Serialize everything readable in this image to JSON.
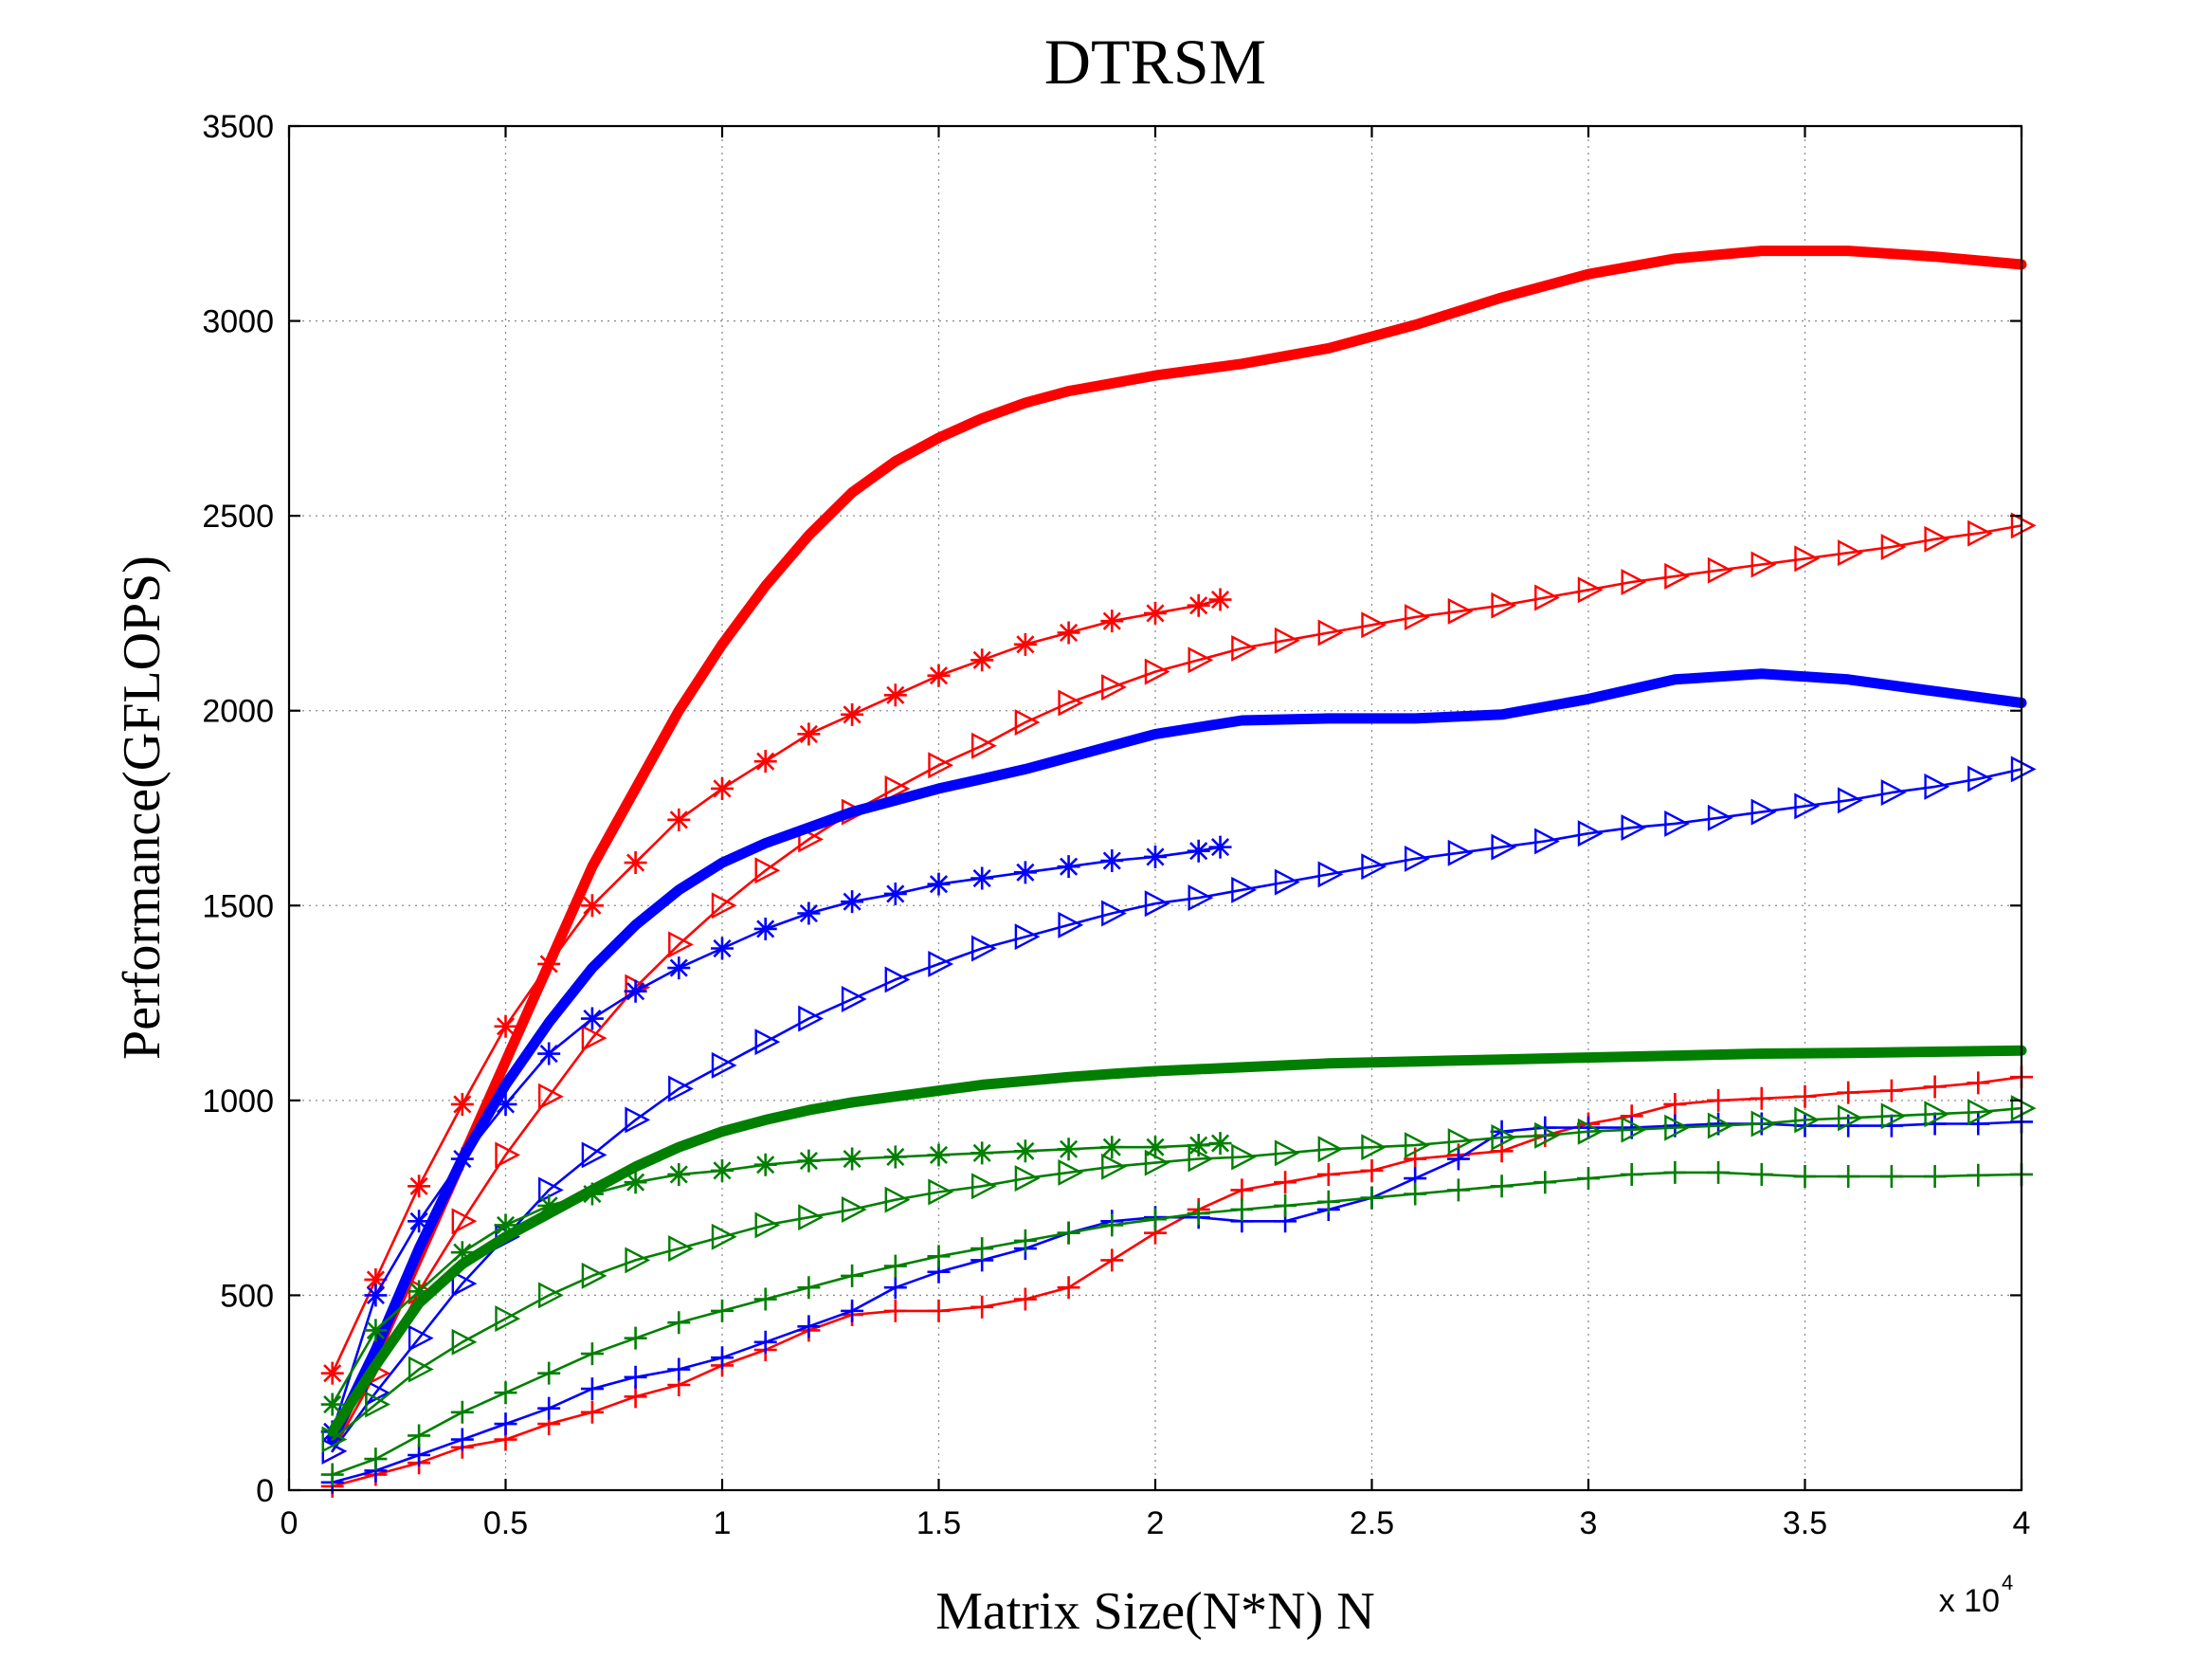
{
  "chart_data": {
    "type": "line",
    "title": "DTRSM",
    "xlabel": "Matrix Size(N*N) N",
    "ylabel": "Performance(GFLOPS)",
    "x_multiplier_label": "x 10",
    "x_multiplier_exponent": "4",
    "xlim": [
      0,
      4
    ],
    "ylim": [
      0,
      3500
    ],
    "x_ticks": [
      0,
      0.5,
      1,
      1.5,
      2,
      2.5,
      3,
      3.5,
      4
    ],
    "x_tick_labels": [
      "0",
      "0.5",
      "1",
      "1.5",
      "2",
      "2.5",
      "3",
      "3.5",
      "4"
    ],
    "y_ticks": [
      0,
      500,
      1000,
      1500,
      2000,
      2500,
      3000,
      3500
    ],
    "y_tick_labels": [
      "0",
      "500",
      "1000",
      "1500",
      "2000",
      "2500",
      "3000",
      "3500"
    ],
    "grid": true,
    "colors": {
      "red": "#ff0000",
      "blue": "#0000ff",
      "green": "#007f00"
    },
    "series": [
      {
        "name": "red-thick",
        "color": "#ff0000",
        "marker": "none",
        "thick": true,
        "x": [
          0.1,
          0.2,
          0.3,
          0.4,
          0.5,
          0.6,
          0.7,
          0.8,
          0.9,
          1.0,
          1.1,
          1.2,
          1.3,
          1.4,
          1.5,
          1.6,
          1.7,
          1.8,
          1.9,
          2.0,
          2.2,
          2.4,
          2.6,
          2.8,
          3.0,
          3.2,
          3.4,
          3.6,
          3.8,
          4.0
        ],
        "y": [
          130,
          350,
          600,
          850,
          1100,
          1350,
          1600,
          1800,
          2000,
          2170,
          2320,
          2450,
          2560,
          2640,
          2700,
          2750,
          2790,
          2820,
          2840,
          2860,
          2890,
          2930,
          2990,
          3060,
          3120,
          3160,
          3180,
          3180,
          3165,
          3145
        ]
      },
      {
        "name": "red-star",
        "color": "#ff0000",
        "marker": "star",
        "thick": false,
        "x": [
          0.1,
          0.2,
          0.3,
          0.4,
          0.5,
          0.6,
          0.7,
          0.8,
          0.9,
          1.0,
          1.1,
          1.2,
          1.3,
          1.4,
          1.5,
          1.6,
          1.7,
          1.8,
          1.9,
          2.0,
          2.1,
          2.15
        ],
        "y": [
          300,
          540,
          780,
          990,
          1190,
          1350,
          1500,
          1610,
          1720,
          1800,
          1870,
          1940,
          1990,
          2040,
          2090,
          2130,
          2170,
          2200,
          2230,
          2250,
          2270,
          2285
        ]
      },
      {
        "name": "red-triangle",
        "color": "#ff0000",
        "marker": "triangle",
        "thick": false,
        "x": [
          0.1,
          0.2,
          0.3,
          0.4,
          0.5,
          0.6,
          0.7,
          0.8,
          0.9,
          1.0,
          1.1,
          1.2,
          1.3,
          1.4,
          1.5,
          1.6,
          1.7,
          1.8,
          1.9,
          2.0,
          2.1,
          2.2,
          2.3,
          2.4,
          2.5,
          2.6,
          2.7,
          2.8,
          2.9,
          3.0,
          3.1,
          3.2,
          3.3,
          3.4,
          3.5,
          3.6,
          3.7,
          3.8,
          3.9,
          4.0
        ],
        "y": [
          100,
          300,
          510,
          690,
          860,
          1010,
          1160,
          1290,
          1400,
          1500,
          1590,
          1670,
          1740,
          1800,
          1860,
          1910,
          1970,
          2020,
          2060,
          2100,
          2130,
          2160,
          2180,
          2200,
          2220,
          2240,
          2255,
          2270,
          2290,
          2310,
          2330,
          2345,
          2360,
          2375,
          2390,
          2405,
          2420,
          2440,
          2455,
          2475
        ]
      },
      {
        "name": "red-plus",
        "color": "#ff0000",
        "marker": "plus",
        "thick": false,
        "x": [
          0.1,
          0.2,
          0.3,
          0.4,
          0.5,
          0.6,
          0.7,
          0.8,
          0.9,
          1.0,
          1.1,
          1.2,
          1.3,
          1.4,
          1.5,
          1.6,
          1.7,
          1.8,
          1.9,
          2.0,
          2.1,
          2.2,
          2.3,
          2.4,
          2.5,
          2.6,
          2.7,
          2.8,
          2.9,
          3.0,
          3.1,
          3.2,
          3.3,
          3.4,
          3.5,
          3.6,
          3.7,
          3.8,
          3.9,
          4.0
        ],
        "y": [
          10,
          40,
          70,
          110,
          130,
          170,
          200,
          240,
          270,
          320,
          360,
          410,
          450,
          460,
          460,
          470,
          490,
          520,
          590,
          660,
          720,
          770,
          790,
          810,
          820,
          850,
          860,
          870,
          910,
          940,
          960,
          990,
          1000,
          1005,
          1010,
          1020,
          1025,
          1035,
          1045,
          1060
        ]
      },
      {
        "name": "blue-thick",
        "color": "#0000ff",
        "marker": "none",
        "thick": true,
        "x": [
          0.1,
          0.2,
          0.3,
          0.4,
          0.5,
          0.6,
          0.7,
          0.8,
          0.9,
          1.0,
          1.1,
          1.2,
          1.3,
          1.4,
          1.5,
          1.6,
          1.7,
          1.8,
          1.9,
          2.0,
          2.2,
          2.4,
          2.6,
          2.8,
          3.0,
          3.2,
          3.4,
          3.6,
          3.8,
          4.0
        ],
        "y": [
          130,
          360,
          620,
          850,
          1040,
          1200,
          1340,
          1450,
          1540,
          1610,
          1660,
          1700,
          1740,
          1770,
          1800,
          1825,
          1850,
          1880,
          1910,
          1940,
          1975,
          1980,
          1980,
          1990,
          2030,
          2080,
          2095,
          2080,
          2050,
          2020
        ]
      },
      {
        "name": "blue-star",
        "color": "#0000ff",
        "marker": "star",
        "thick": false,
        "x": [
          0.1,
          0.2,
          0.3,
          0.4,
          0.5,
          0.6,
          0.7,
          0.8,
          0.9,
          1.0,
          1.1,
          1.2,
          1.3,
          1.4,
          1.5,
          1.6,
          1.7,
          1.8,
          1.9,
          2.0,
          2.1,
          2.15
        ],
        "y": [
          150,
          500,
          690,
          850,
          990,
          1120,
          1210,
          1280,
          1340,
          1390,
          1440,
          1480,
          1510,
          1530,
          1555,
          1570,
          1585,
          1600,
          1615,
          1625,
          1640,
          1650
        ]
      },
      {
        "name": "blue-triangle",
        "color": "#0000ff",
        "marker": "triangle",
        "thick": false,
        "x": [
          0.1,
          0.2,
          0.3,
          0.4,
          0.5,
          0.6,
          0.7,
          0.8,
          0.9,
          1.0,
          1.1,
          1.2,
          1.3,
          1.4,
          1.5,
          1.6,
          1.7,
          1.8,
          1.9,
          2.0,
          2.1,
          2.2,
          2.3,
          2.4,
          2.5,
          2.6,
          2.7,
          2.8,
          2.9,
          3.0,
          3.1,
          3.2,
          3.3,
          3.4,
          3.5,
          3.6,
          3.7,
          3.8,
          3.9,
          4.0
        ],
        "y": [
          100,
          250,
          390,
          530,
          650,
          770,
          860,
          950,
          1030,
          1090,
          1150,
          1210,
          1260,
          1310,
          1350,
          1390,
          1420,
          1450,
          1480,
          1505,
          1520,
          1540,
          1560,
          1580,
          1600,
          1620,
          1635,
          1650,
          1665,
          1685,
          1700,
          1710,
          1725,
          1740,
          1755,
          1770,
          1790,
          1805,
          1825,
          1850
        ]
      },
      {
        "name": "blue-plus",
        "color": "#0000ff",
        "marker": "plus",
        "thick": false,
        "x": [
          0.1,
          0.2,
          0.3,
          0.4,
          0.5,
          0.6,
          0.7,
          0.8,
          0.9,
          1.0,
          1.1,
          1.2,
          1.3,
          1.4,
          1.5,
          1.6,
          1.7,
          1.8,
          1.9,
          2.0,
          2.1,
          2.2,
          2.3,
          2.4,
          2.5,
          2.6,
          2.7,
          2.8,
          2.9,
          3.0,
          3.1,
          3.2,
          3.3,
          3.4,
          3.5,
          3.6,
          3.7,
          3.8,
          3.9,
          4.0
        ],
        "y": [
          20,
          50,
          90,
          130,
          170,
          210,
          260,
          290,
          310,
          340,
          380,
          420,
          460,
          520,
          560,
          590,
          620,
          660,
          690,
          700,
          700,
          690,
          690,
          720,
          750,
          800,
          850,
          920,
          930,
          930,
          930,
          935,
          940,
          940,
          935,
          935,
          935,
          940,
          940,
          945
        ]
      },
      {
        "name": "green-thick",
        "color": "#007f00",
        "marker": "none",
        "thick": true,
        "x": [
          0.1,
          0.2,
          0.3,
          0.4,
          0.5,
          0.6,
          0.7,
          0.8,
          0.9,
          1.0,
          1.1,
          1.2,
          1.3,
          1.4,
          1.5,
          1.6,
          1.7,
          1.8,
          1.9,
          2.0,
          2.2,
          2.4,
          2.6,
          2.8,
          3.0,
          3.2,
          3.4,
          3.6,
          3.8,
          4.0
        ],
        "y": [
          150,
          320,
          480,
          580,
          650,
          710,
          770,
          830,
          880,
          920,
          950,
          975,
          995,
          1010,
          1025,
          1040,
          1050,
          1060,
          1068,
          1075,
          1085,
          1095,
          1100,
          1105,
          1110,
          1115,
          1120,
          1122,
          1125,
          1128
        ]
      },
      {
        "name": "green-star",
        "color": "#007f00",
        "marker": "star",
        "thick": false,
        "x": [
          0.1,
          0.2,
          0.3,
          0.4,
          0.5,
          0.6,
          0.7,
          0.8,
          0.9,
          1.0,
          1.1,
          1.2,
          1.3,
          1.4,
          1.5,
          1.6,
          1.7,
          1.8,
          1.9,
          2.0,
          2.1,
          2.15
        ],
        "y": [
          220,
          410,
          510,
          610,
          680,
          730,
          760,
          790,
          810,
          820,
          835,
          845,
          850,
          855,
          860,
          865,
          870,
          875,
          880,
          880,
          885,
          890
        ]
      },
      {
        "name": "green-triangle",
        "color": "#007f00",
        "marker": "triangle",
        "thick": false,
        "x": [
          0.1,
          0.2,
          0.3,
          0.4,
          0.5,
          0.6,
          0.7,
          0.8,
          0.9,
          1.0,
          1.1,
          1.2,
          1.3,
          1.4,
          1.5,
          1.6,
          1.7,
          1.8,
          1.9,
          2.0,
          2.1,
          2.2,
          2.3,
          2.4,
          2.5,
          2.6,
          2.7,
          2.8,
          2.9,
          3.0,
          3.1,
          3.2,
          3.3,
          3.4,
          3.5,
          3.6,
          3.7,
          3.8,
          3.9,
          4.0
        ],
        "y": [
          130,
          220,
          310,
          380,
          440,
          500,
          550,
          590,
          620,
          650,
          680,
          700,
          720,
          745,
          765,
          780,
          800,
          815,
          830,
          840,
          850,
          855,
          865,
          875,
          880,
          885,
          895,
          905,
          910,
          920,
          925,
          930,
          935,
          940,
          950,
          955,
          960,
          965,
          970,
          980
        ]
      },
      {
        "name": "green-plus",
        "color": "#007f00",
        "marker": "plus",
        "thick": false,
        "x": [
          0.1,
          0.2,
          0.3,
          0.4,
          0.5,
          0.6,
          0.7,
          0.8,
          0.9,
          1.0,
          1.1,
          1.2,
          1.3,
          1.4,
          1.5,
          1.6,
          1.7,
          1.8,
          1.9,
          2.0,
          2.1,
          2.2,
          2.3,
          2.4,
          2.5,
          2.6,
          2.7,
          2.8,
          2.9,
          3.0,
          3.1,
          3.2,
          3.3,
          3.4,
          3.5,
          3.6,
          3.7,
          3.8,
          3.9,
          4.0
        ],
        "y": [
          40,
          80,
          140,
          200,
          250,
          300,
          350,
          390,
          430,
          460,
          490,
          520,
          550,
          575,
          600,
          620,
          640,
          660,
          680,
          695,
          710,
          720,
          730,
          740,
          750,
          760,
          770,
          780,
          790,
          800,
          810,
          815,
          815,
          810,
          805,
          805,
          805,
          805,
          808,
          810
        ]
      }
    ]
  }
}
